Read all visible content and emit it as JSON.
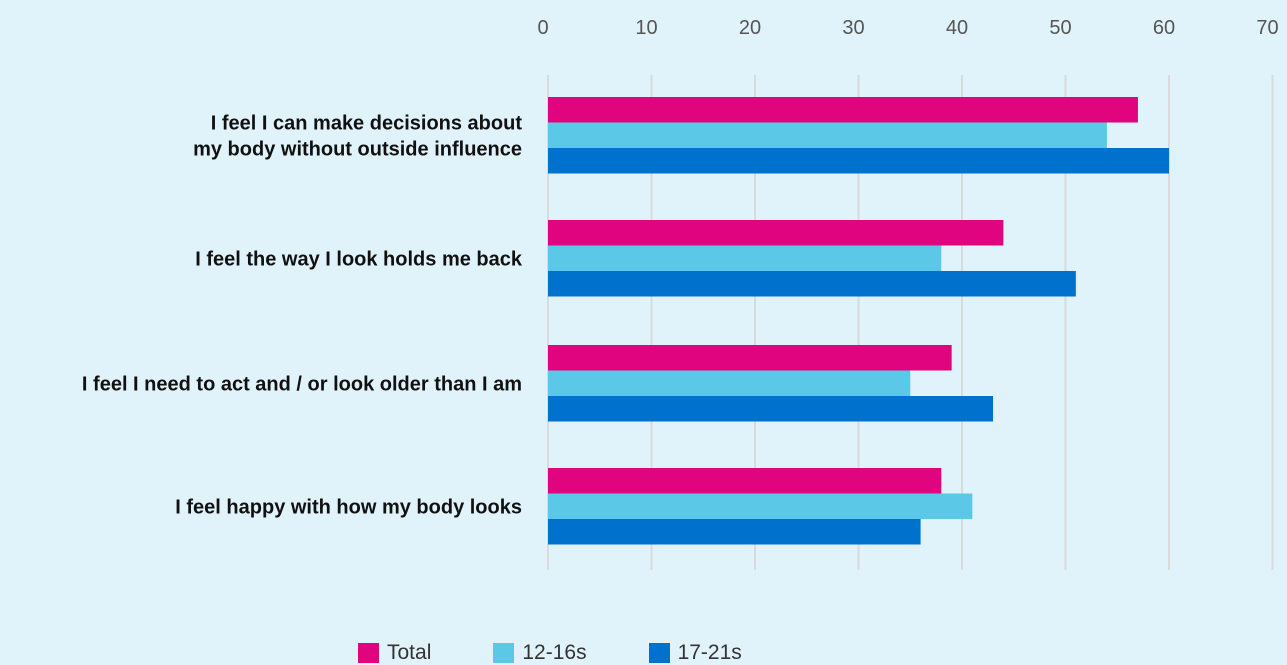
{
  "chart_data": {
    "type": "bar",
    "orientation": "horizontal",
    "categories": [
      [
        "I feel I can make decisions about",
        "my body without outside influence"
      ],
      [
        "I feel the way I look holds me back"
      ],
      [
        "I feel I need to act and / or look older than I am"
      ],
      [
        "I feel happy with how my body looks"
      ]
    ],
    "series": [
      {
        "name": "Total",
        "color": "#e0047e",
        "values": [
          57,
          44,
          39,
          38
        ]
      },
      {
        "name": "12-16s",
        "color": "#5bc8e8",
        "values": [
          54,
          38,
          35,
          41
        ]
      },
      {
        "name": "17-21s",
        "color": "#0072ce",
        "values": [
          60,
          51,
          43,
          36
        ]
      }
    ],
    "xlim": [
      0,
      70
    ],
    "xticks": [
      "0",
      "10",
      "20",
      "30",
      "40",
      "50",
      "60",
      "70"
    ],
    "x_axis_position": "top",
    "grid": true,
    "gridline_color": "#d9dadb",
    "legend_position": "bottom-center",
    "title": "",
    "xlabel": "",
    "ylabel": ""
  }
}
